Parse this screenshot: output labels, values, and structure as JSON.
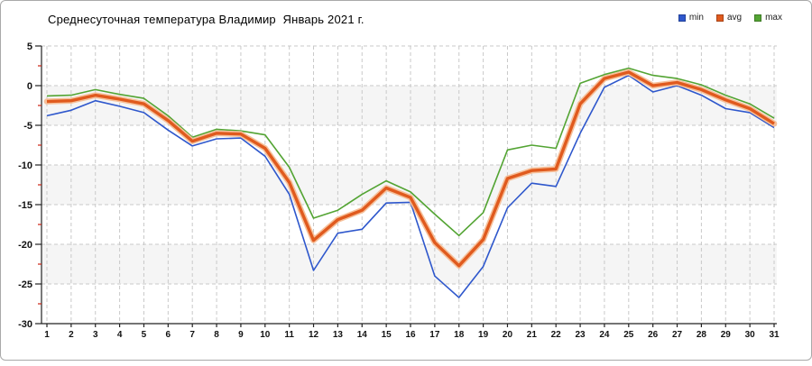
{
  "title": "Среднесуточная температура Владимир  Январь 2021 г.",
  "legend": [
    {
      "label": "min",
      "color": "#2e57cc"
    },
    {
      "label": "avg",
      "color": "#e05a1e"
    },
    {
      "label": "max",
      "color": "#53a433"
    }
  ],
  "colors": {
    "grid": "#c9c9c9",
    "band": "#f5f5f5",
    "axis": "#222222",
    "minor_tick": "#cc2211",
    "avg_halo": "#f6c09a"
  },
  "chart_data": {
    "type": "line",
    "title": "Среднесуточная температура Владимир  Январь 2021 г.",
    "xlabel": "",
    "ylabel": "",
    "x": [
      1,
      2,
      3,
      4,
      5,
      6,
      7,
      8,
      9,
      10,
      11,
      12,
      13,
      14,
      15,
      16,
      17,
      18,
      19,
      20,
      21,
      22,
      23,
      24,
      25,
      26,
      27,
      28,
      29,
      30,
      31
    ],
    "series": [
      {
        "name": "min",
        "color": "#2e57cc",
        "width": 1.6,
        "values": [
          -3.8,
          -3.1,
          -1.9,
          -2.6,
          -3.4,
          -5.6,
          -7.6,
          -6.7,
          -6.6,
          -8.9,
          -13.7,
          -23.3,
          -18.6,
          -18.1,
          -14.8,
          -14.7,
          -24.0,
          -26.7,
          -22.8,
          -15.4,
          -12.3,
          -12.7,
          -6.0,
          -0.2,
          1.3,
          -0.8,
          0.0,
          -1.2,
          -2.9,
          -3.4,
          -5.3
        ]
      },
      {
        "name": "avg",
        "color": "#e05a1e",
        "width": 3.4,
        "values": [
          -2.0,
          -1.9,
          -1.2,
          -1.7,
          -2.3,
          -4.4,
          -7.0,
          -6.0,
          -6.1,
          -7.9,
          -12.2,
          -19.5,
          -16.9,
          -15.7,
          -12.9,
          -14.1,
          -19.8,
          -22.7,
          -19.4,
          -11.7,
          -10.7,
          -10.5,
          -2.3,
          0.9,
          1.7,
          0.0,
          0.4,
          -0.5,
          -1.8,
          -2.9,
          -4.8
        ]
      },
      {
        "name": "max",
        "color": "#53a433",
        "width": 1.6,
        "values": [
          -1.3,
          -1.2,
          -0.5,
          -1.1,
          -1.6,
          -3.8,
          -6.5,
          -5.5,
          -5.7,
          -6.2,
          -10.3,
          -16.7,
          -15.7,
          -13.7,
          -12.0,
          -13.4,
          -16.2,
          -18.9,
          -16.0,
          -8.1,
          -7.5,
          -7.9,
          0.3,
          1.4,
          2.2,
          1.3,
          0.9,
          0.1,
          -1.2,
          -2.3,
          -4.1
        ]
      }
    ],
    "ylim": [
      -30,
      5
    ],
    "yticks": [
      5,
      0,
      -5,
      -10,
      -15,
      -20,
      -25,
      -30
    ],
    "minor_yticks": [
      2.5,
      -2.5,
      -7.5,
      -12.5,
      -17.5,
      -22.5,
      -27.5
    ],
    "shaded_bands": [
      [
        0,
        -5
      ],
      [
        -10,
        -15
      ],
      [
        -20,
        -25
      ]
    ],
    "grid": true,
    "legend_position": "top-right"
  }
}
